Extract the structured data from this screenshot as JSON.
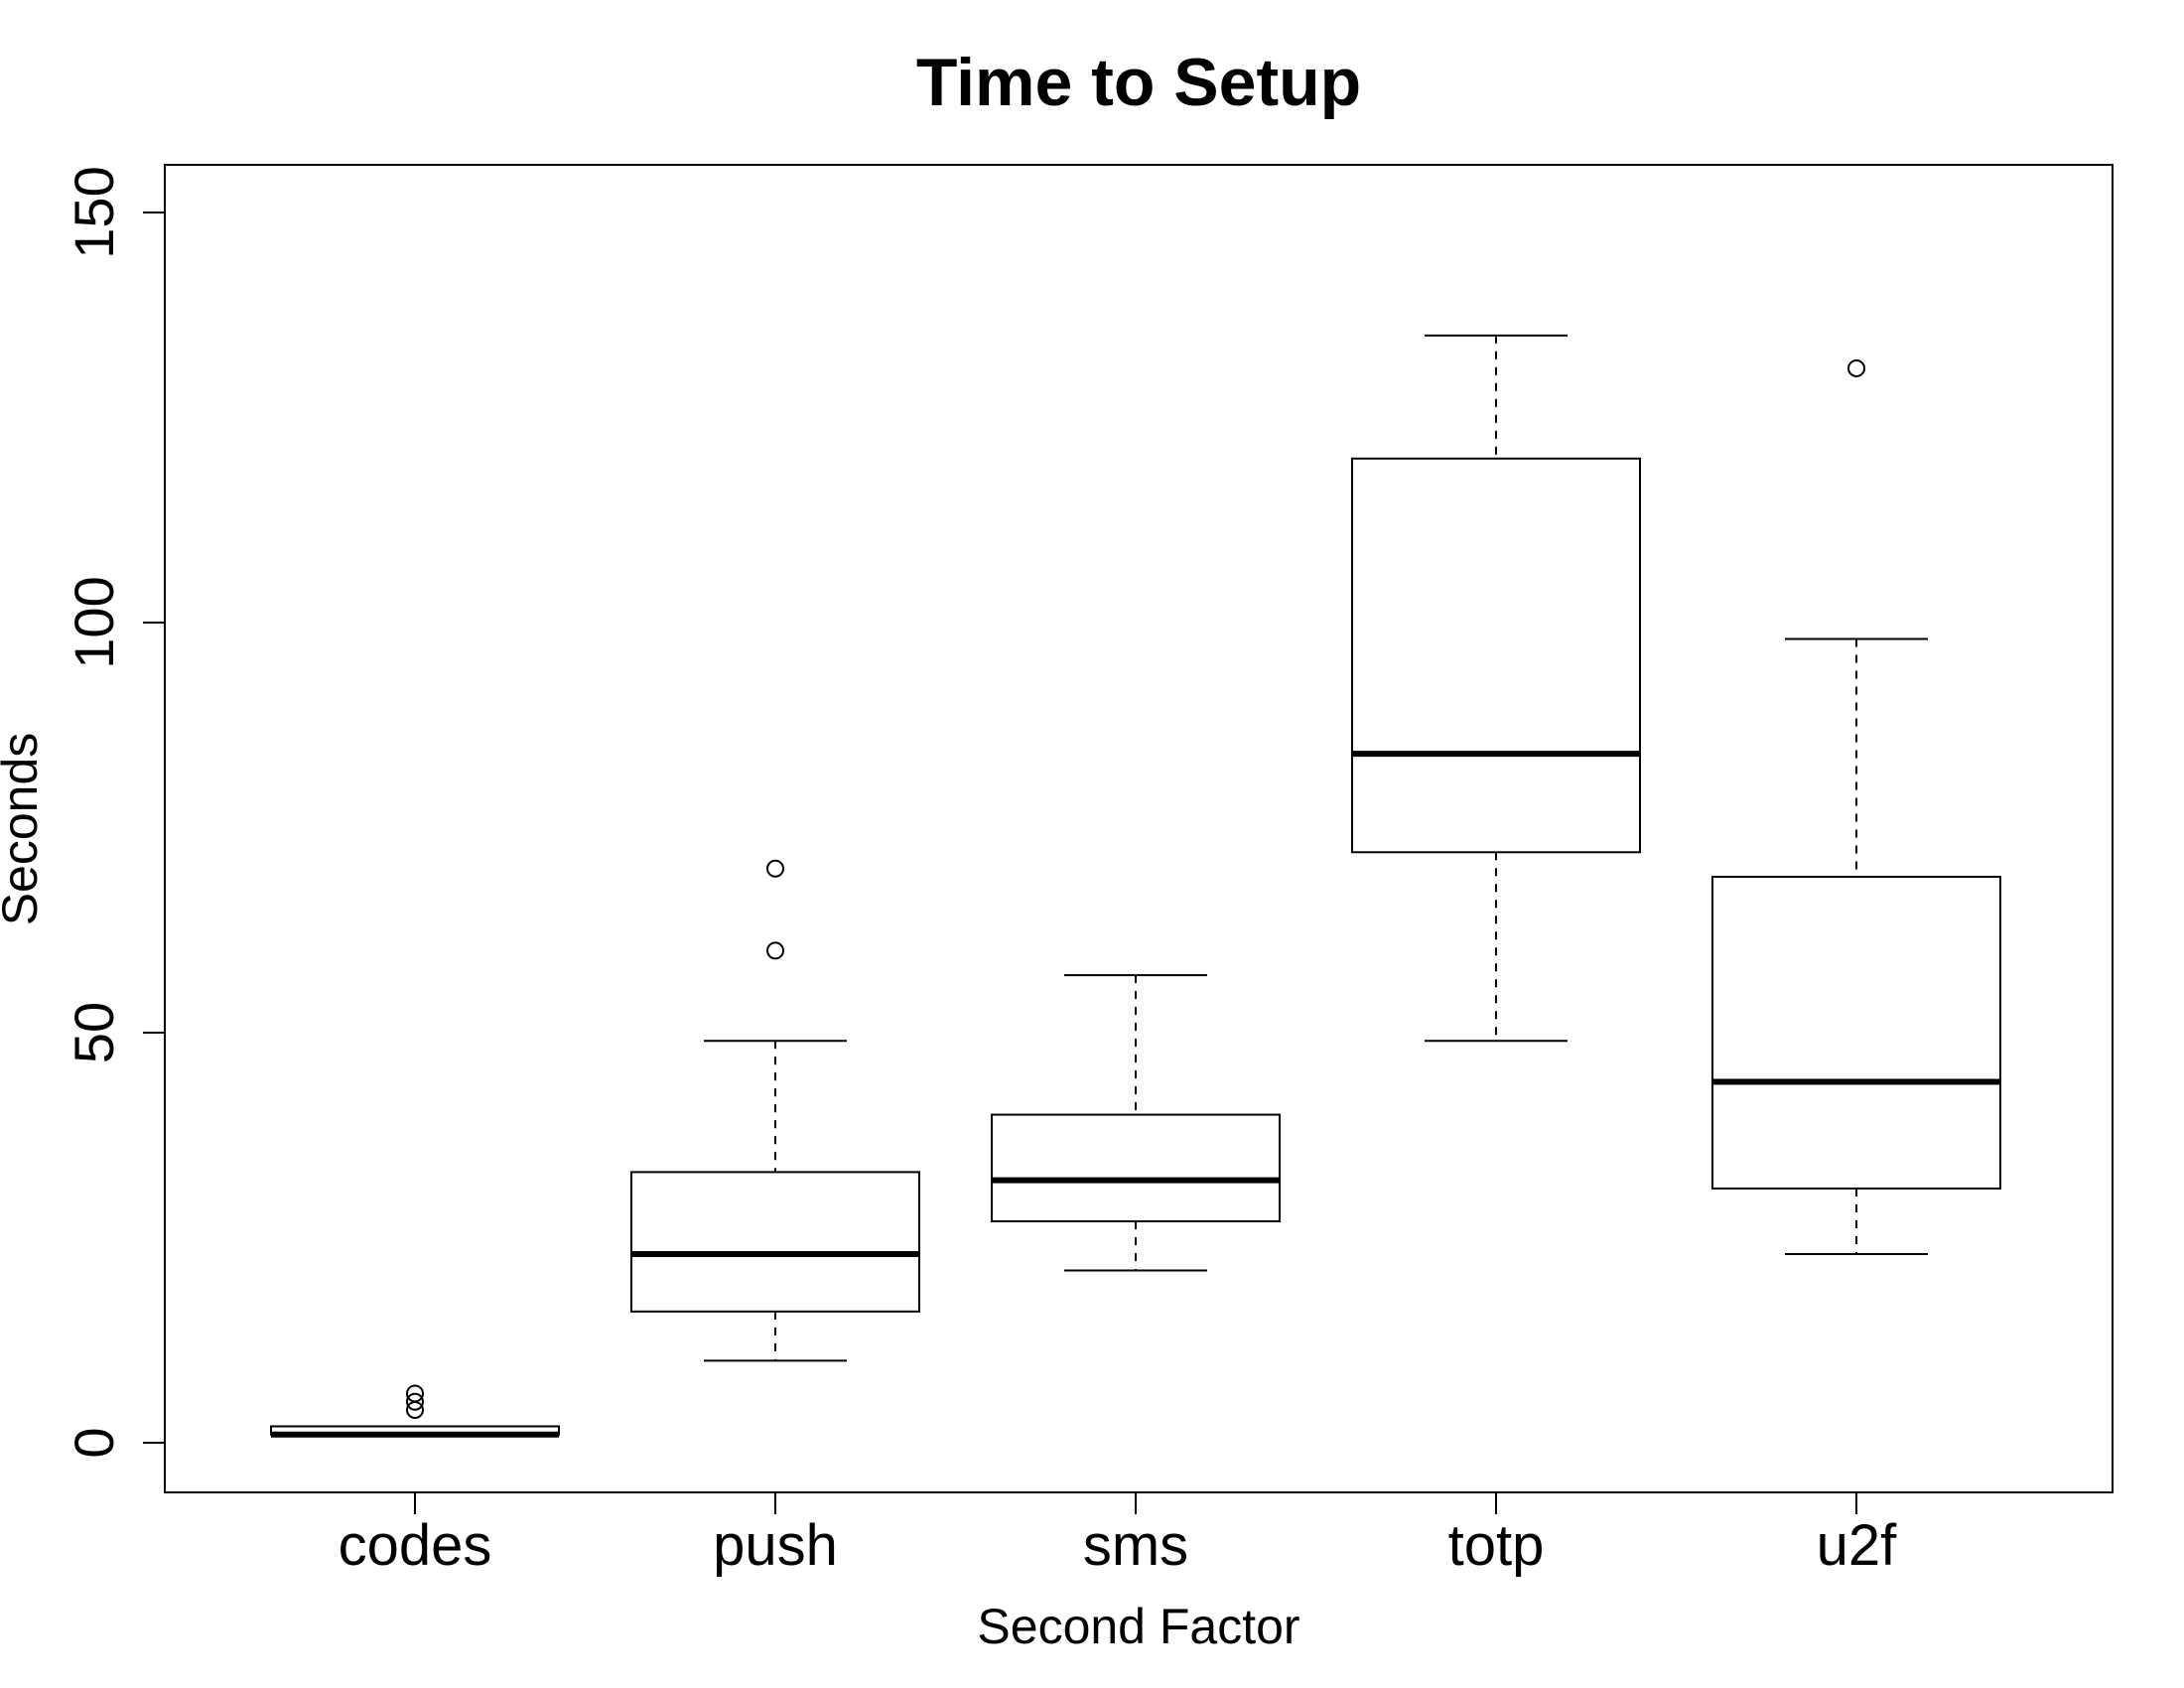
{
  "chart_data": {
    "type": "boxplot",
    "title": "Time to Setup",
    "xlabel": "Second Factor",
    "ylabel": "Seconds",
    "ylim": [
      -6,
      156
    ],
    "yticks": [
      0,
      50,
      100,
      150
    ],
    "categories": [
      "codes",
      "push",
      "sms",
      "totp",
      "u2f"
    ],
    "boxes": [
      {
        "category": "codes",
        "whisker_low": 1,
        "q1": 1,
        "median": 1,
        "q3": 2,
        "whisker_high": 2,
        "outliers": [
          4,
          5,
          6
        ]
      },
      {
        "category": "push",
        "whisker_low": 10,
        "q1": 16,
        "median": 23,
        "q3": 33,
        "whisker_high": 49,
        "outliers": [
          60,
          70
        ]
      },
      {
        "category": "sms",
        "whisker_low": 21,
        "q1": 27,
        "median": 32,
        "q3": 40,
        "whisker_high": 57,
        "outliers": []
      },
      {
        "category": "totp",
        "whisker_low": 49,
        "q1": 72,
        "median": 84,
        "q3": 120,
        "whisker_high": 135,
        "outliers": []
      },
      {
        "category": "u2f",
        "whisker_low": 23,
        "q1": 31,
        "median": 44,
        "q3": 69,
        "whisker_high": 98,
        "outliers": [
          131
        ]
      }
    ],
    "grid": false,
    "legend": "none",
    "colors": {
      "stroke": "#000000",
      "background": "#ffffff"
    }
  }
}
